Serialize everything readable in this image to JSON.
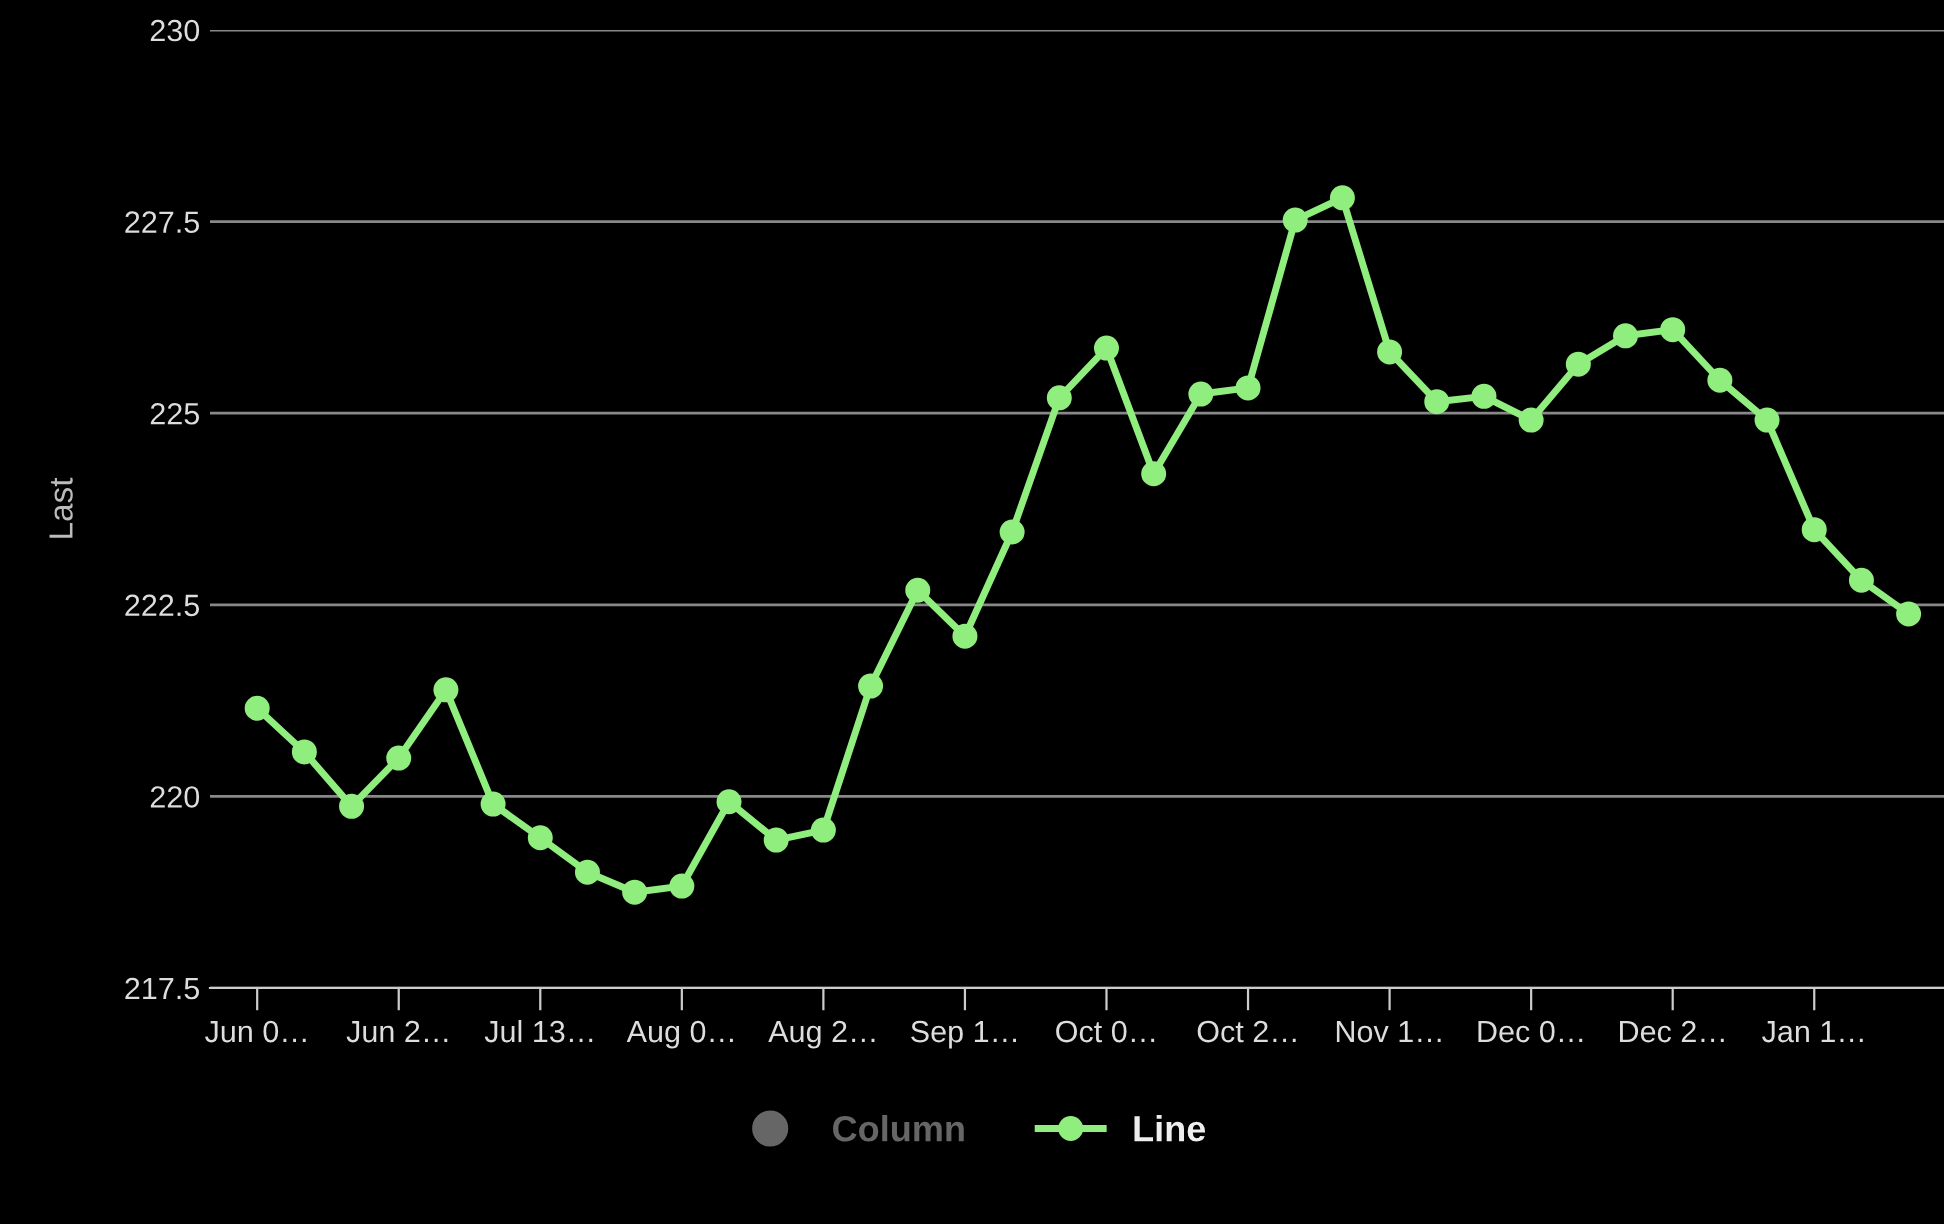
{
  "chart_data": {
    "type": "line",
    "ylabel": "Last",
    "categories": [
      "Jun 0…",
      null,
      null,
      "Jun 2…",
      null,
      null,
      "Jul 13…",
      null,
      null,
      "Aug 0…",
      null,
      null,
      "Aug 2…",
      null,
      null,
      "Sep 1…",
      null,
      null,
      "Oct 0…",
      null,
      null,
      "Oct 2…",
      null,
      null,
      "Nov 1…",
      null,
      null,
      "Dec 0…",
      null,
      null,
      "Dec 2…",
      null,
      null,
      "Jan 1…",
      null,
      null
    ],
    "series": [
      {
        "name": "Column",
        "type": "bar",
        "color": "#666666",
        "values": [
          null,
          null,
          null,
          null,
          null,
          null,
          null,
          null,
          null,
          null,
          null,
          null,
          null,
          null,
          null,
          null,
          null,
          null,
          null,
          null,
          null,
          null,
          null,
          null,
          null,
          null,
          null,
          null,
          null,
          null,
          null,
          null,
          null,
          null,
          null,
          null
        ]
      },
      {
        "name": "Line",
        "color": "#90ee7e",
        "values": [
          221.15,
          220.58,
          219.87,
          220.5,
          221.39,
          219.9,
          219.46,
          219.01,
          218.75,
          218.83,
          219.93,
          219.43,
          219.56,
          221.44,
          222.69,
          222.09,
          223.45,
          225.2,
          225.85,
          224.21,
          225.25,
          225.33,
          227.52,
          227.81,
          225.8,
          225.15,
          225.22,
          224.91,
          225.64,
          226.01,
          226.09,
          225.43,
          224.91,
          223.48,
          222.82,
          222.38
        ]
      }
    ],
    "ylim": [
      217.5,
      230
    ],
    "yticks": [
      217.5,
      220,
      222.5,
      225,
      227.5,
      230
    ],
    "grid": "y",
    "legend": "bottom",
    "marker": "circle",
    "line_style": "solid"
  }
}
